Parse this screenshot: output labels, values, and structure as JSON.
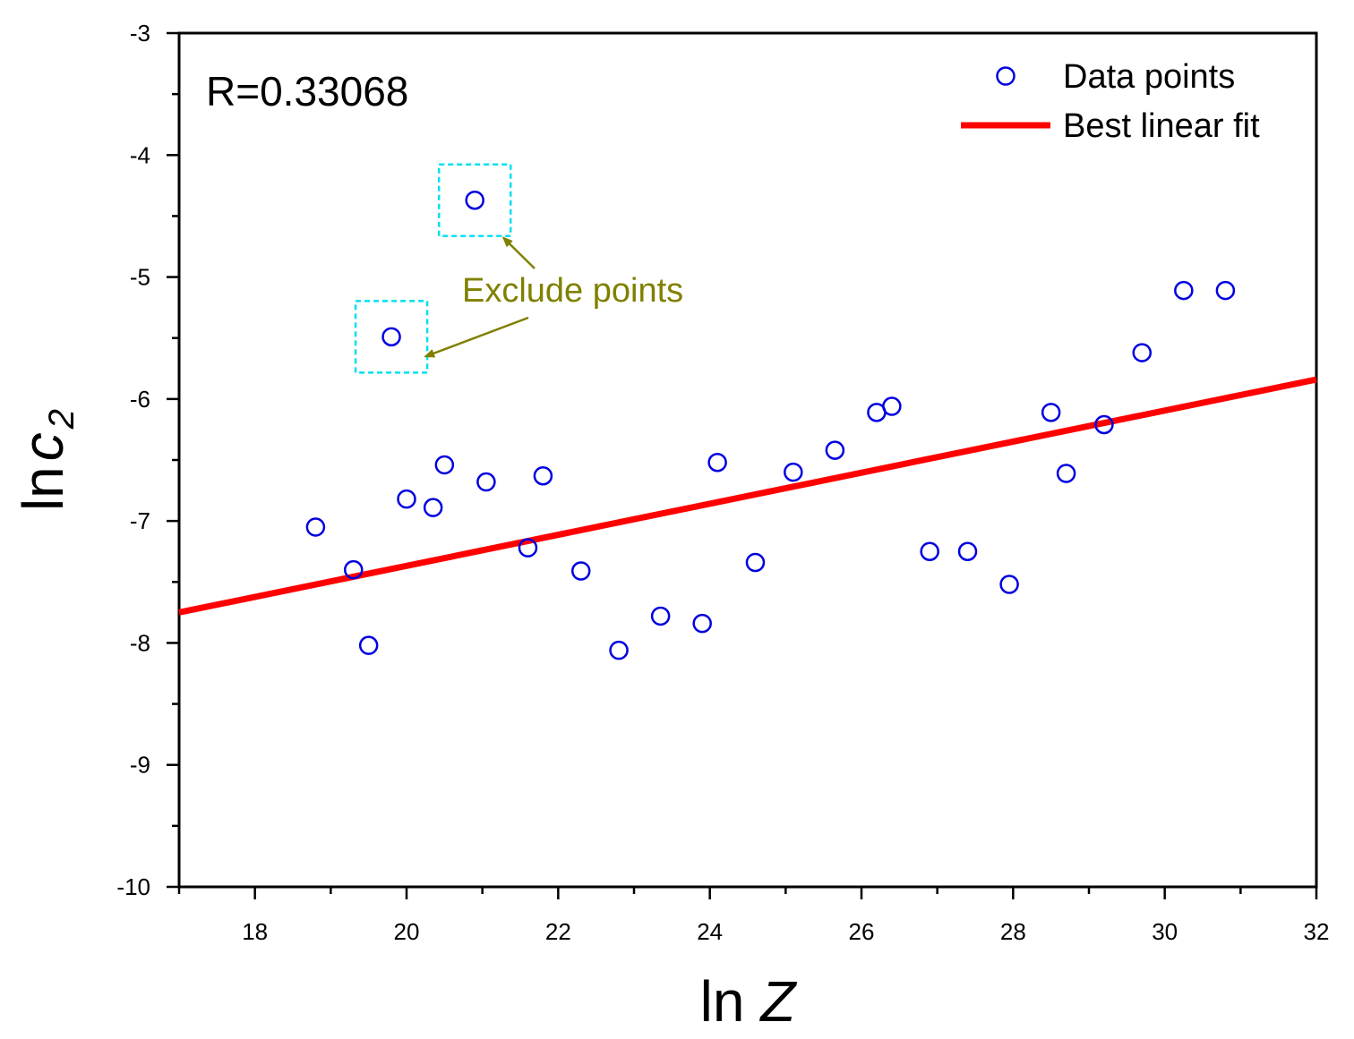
{
  "chart_data": {
    "type": "scatter",
    "title": "",
    "xlabel": "ln Z",
    "ylabel": "ln c 2",
    "ylabel_parts": {
      "prefix": "ln",
      "var": "c",
      "sub": "2"
    },
    "xlabel_parts": {
      "prefix": "ln ",
      "var": "Z"
    },
    "xlim": [
      17,
      32
    ],
    "ylim": [
      -10,
      -3
    ],
    "xticks": [
      18,
      20,
      22,
      24,
      26,
      28,
      30,
      32
    ],
    "yticks": [
      -3,
      -4,
      -5,
      -6,
      -7,
      -8,
      -9,
      -10
    ],
    "xtick_labels": [
      "18",
      "20",
      "22",
      "24",
      "26",
      "28",
      "30",
      "32"
    ],
    "ytick_labels": [
      "-3",
      "-4",
      "-5",
      "-6",
      "-7",
      "-8",
      "-9",
      "-10"
    ],
    "grid": false,
    "r_label": "R=0.33068",
    "series": [
      {
        "name": "Data points",
        "marker": "open-circle",
        "color": "#0000e0",
        "points": [
          [
            18.8,
            -7.05
          ],
          [
            19.3,
            -7.4
          ],
          [
            19.5,
            -8.02
          ],
          [
            19.8,
            -5.49
          ],
          [
            20.0,
            -6.82
          ],
          [
            20.35,
            -6.89
          ],
          [
            20.5,
            -6.54
          ],
          [
            20.9,
            -4.37
          ],
          [
            21.05,
            -6.68
          ],
          [
            21.6,
            -7.22
          ],
          [
            21.8,
            -6.63
          ],
          [
            22.3,
            -7.41
          ],
          [
            22.8,
            -8.06
          ],
          [
            23.35,
            -7.78
          ],
          [
            23.9,
            -7.84
          ],
          [
            24.1,
            -6.52
          ],
          [
            24.6,
            -7.34
          ],
          [
            25.1,
            -6.6
          ],
          [
            25.65,
            -6.42
          ],
          [
            26.2,
            -6.11
          ],
          [
            26.4,
            -6.06
          ],
          [
            26.9,
            -7.25
          ],
          [
            27.4,
            -7.25
          ],
          [
            27.95,
            -7.52
          ],
          [
            28.5,
            -6.11
          ],
          [
            28.7,
            -6.61
          ],
          [
            29.2,
            -6.21
          ],
          [
            29.7,
            -5.62
          ],
          [
            30.25,
            -5.11
          ],
          [
            30.8,
            -5.11
          ]
        ]
      },
      {
        "name": "Best linear fit",
        "type": "line",
        "color": "#ff0000",
        "x": [
          17,
          32
        ],
        "y": [
          -7.75,
          -5.84
        ]
      }
    ],
    "legend": {
      "placement": "top-right",
      "entries": [
        "Data points",
        "Best linear fit"
      ]
    },
    "annotations": {
      "text": "Exclude points",
      "color": "#808000",
      "box_color": "#00e0f0",
      "excluded_points": [
        [
          19.8,
          -5.49
        ],
        [
          20.9,
          -4.37
        ]
      ]
    }
  }
}
